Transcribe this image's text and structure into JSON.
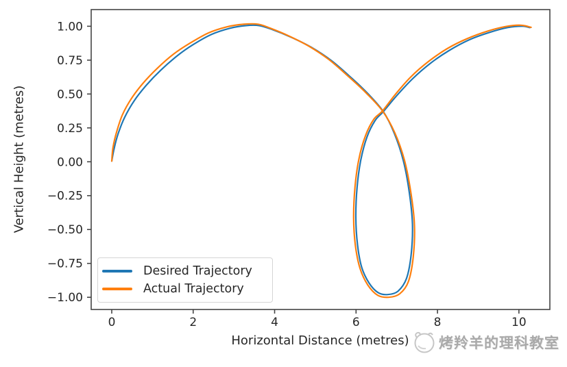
{
  "watermark": {
    "text": "烤羚羊的理科教室",
    "logo": "antelope-mascot-icon"
  },
  "chart_data": {
    "type": "line",
    "title": "",
    "xlabel": "Horizontal Distance (metres)",
    "ylabel": "Vertical Height (metres)",
    "xlim": [
      -0.505,
      10.76
    ],
    "ylim": [
      -1.09,
      1.123
    ],
    "grid": false,
    "legend_position": "lower left",
    "xticks": {
      "values": [
        0,
        2,
        4,
        6,
        8,
        10
      ],
      "labels": [
        "0",
        "2",
        "4",
        "6",
        "8",
        "10"
      ]
    },
    "yticks": {
      "values": [
        1.0,
        0.75,
        0.5,
        0.25,
        0.0,
        -0.25,
        -0.5,
        -0.75,
        -1.0
      ],
      "labels": [
        "1.00",
        "0.75",
        "0.50",
        "0.25",
        "0.00",
        "−0.25",
        "−0.50",
        "−0.75",
        "−1.00"
      ]
    },
    "legend": {
      "desired_label": "Desired Trajectory",
      "actual_label": "Actual Trajectory"
    },
    "series": [
      {
        "name": "Desired Trajectory",
        "color": "#1f77b4",
        "points": [
          [
            0.0,
            0.005
          ],
          [
            0.06,
            0.1
          ],
          [
            0.16,
            0.21
          ],
          [
            0.32,
            0.33
          ],
          [
            0.55,
            0.45
          ],
          [
            0.85,
            0.565
          ],
          [
            1.2,
            0.675
          ],
          [
            1.6,
            0.78
          ],
          [
            2.0,
            0.865
          ],
          [
            2.45,
            0.94
          ],
          [
            2.9,
            0.985
          ],
          [
            3.3,
            1.005
          ],
          [
            3.62,
            1.005
          ],
          [
            3.95,
            0.975
          ],
          [
            4.4,
            0.92
          ],
          [
            4.9,
            0.845
          ],
          [
            5.4,
            0.745
          ],
          [
            5.9,
            0.615
          ],
          [
            6.3,
            0.5
          ],
          [
            6.67,
            0.37
          ],
          [
            6.94,
            0.21
          ],
          [
            7.16,
            0.01
          ],
          [
            7.31,
            -0.23
          ],
          [
            7.385,
            -0.46
          ],
          [
            7.355,
            -0.68
          ],
          [
            7.24,
            -0.86
          ],
          [
            7.03,
            -0.955
          ],
          [
            6.78,
            -0.98
          ],
          [
            6.54,
            -0.965
          ],
          [
            6.32,
            -0.895
          ],
          [
            6.14,
            -0.78
          ],
          [
            6.035,
            -0.61
          ],
          [
            5.995,
            -0.41
          ],
          [
            6.025,
            -0.19
          ],
          [
            6.115,
            0.01
          ],
          [
            6.27,
            0.185
          ],
          [
            6.47,
            0.305
          ],
          [
            6.67,
            0.37
          ],
          [
            6.99,
            0.485
          ],
          [
            7.38,
            0.61
          ],
          [
            7.82,
            0.725
          ],
          [
            8.28,
            0.82
          ],
          [
            8.78,
            0.9
          ],
          [
            9.28,
            0.955
          ],
          [
            9.72,
            0.99
          ],
          [
            10.08,
            1.0
          ],
          [
            10.27,
            0.99
          ]
        ]
      },
      {
        "name": "Actual Trajectory",
        "color": "#ff7f0e",
        "points": [
          [
            0.0,
            0.005
          ],
          [
            0.03,
            0.105
          ],
          [
            0.12,
            0.22
          ],
          [
            0.26,
            0.345
          ],
          [
            0.48,
            0.465
          ],
          [
            0.77,
            0.58
          ],
          [
            1.12,
            0.69
          ],
          [
            1.52,
            0.795
          ],
          [
            1.92,
            0.875
          ],
          [
            2.37,
            0.95
          ],
          [
            2.82,
            0.995
          ],
          [
            3.24,
            1.015
          ],
          [
            3.6,
            1.015
          ],
          [
            3.9,
            0.985
          ],
          [
            4.34,
            0.93
          ],
          [
            4.83,
            0.855
          ],
          [
            5.33,
            0.755
          ],
          [
            5.83,
            0.625
          ],
          [
            6.24,
            0.51
          ],
          [
            6.65,
            0.375
          ],
          [
            6.95,
            0.215
          ],
          [
            7.19,
            0.01
          ],
          [
            7.35,
            -0.235
          ],
          [
            7.435,
            -0.47
          ],
          [
            7.405,
            -0.7
          ],
          [
            7.285,
            -0.885
          ],
          [
            7.07,
            -0.975
          ],
          [
            6.8,
            -1.0
          ],
          [
            6.53,
            -0.985
          ],
          [
            6.29,
            -0.91
          ],
          [
            6.1,
            -0.79
          ],
          [
            5.985,
            -0.62
          ],
          [
            5.94,
            -0.415
          ],
          [
            5.975,
            -0.185
          ],
          [
            6.07,
            0.02
          ],
          [
            6.235,
            0.195
          ],
          [
            6.44,
            0.315
          ],
          [
            6.65,
            0.375
          ],
          [
            6.96,
            0.495
          ],
          [
            7.34,
            0.625
          ],
          [
            7.78,
            0.74
          ],
          [
            8.24,
            0.835
          ],
          [
            8.74,
            0.91
          ],
          [
            9.24,
            0.965
          ],
          [
            9.68,
            0.998
          ],
          [
            10.04,
            1.008
          ],
          [
            10.3,
            0.992
          ]
        ]
      }
    ]
  }
}
